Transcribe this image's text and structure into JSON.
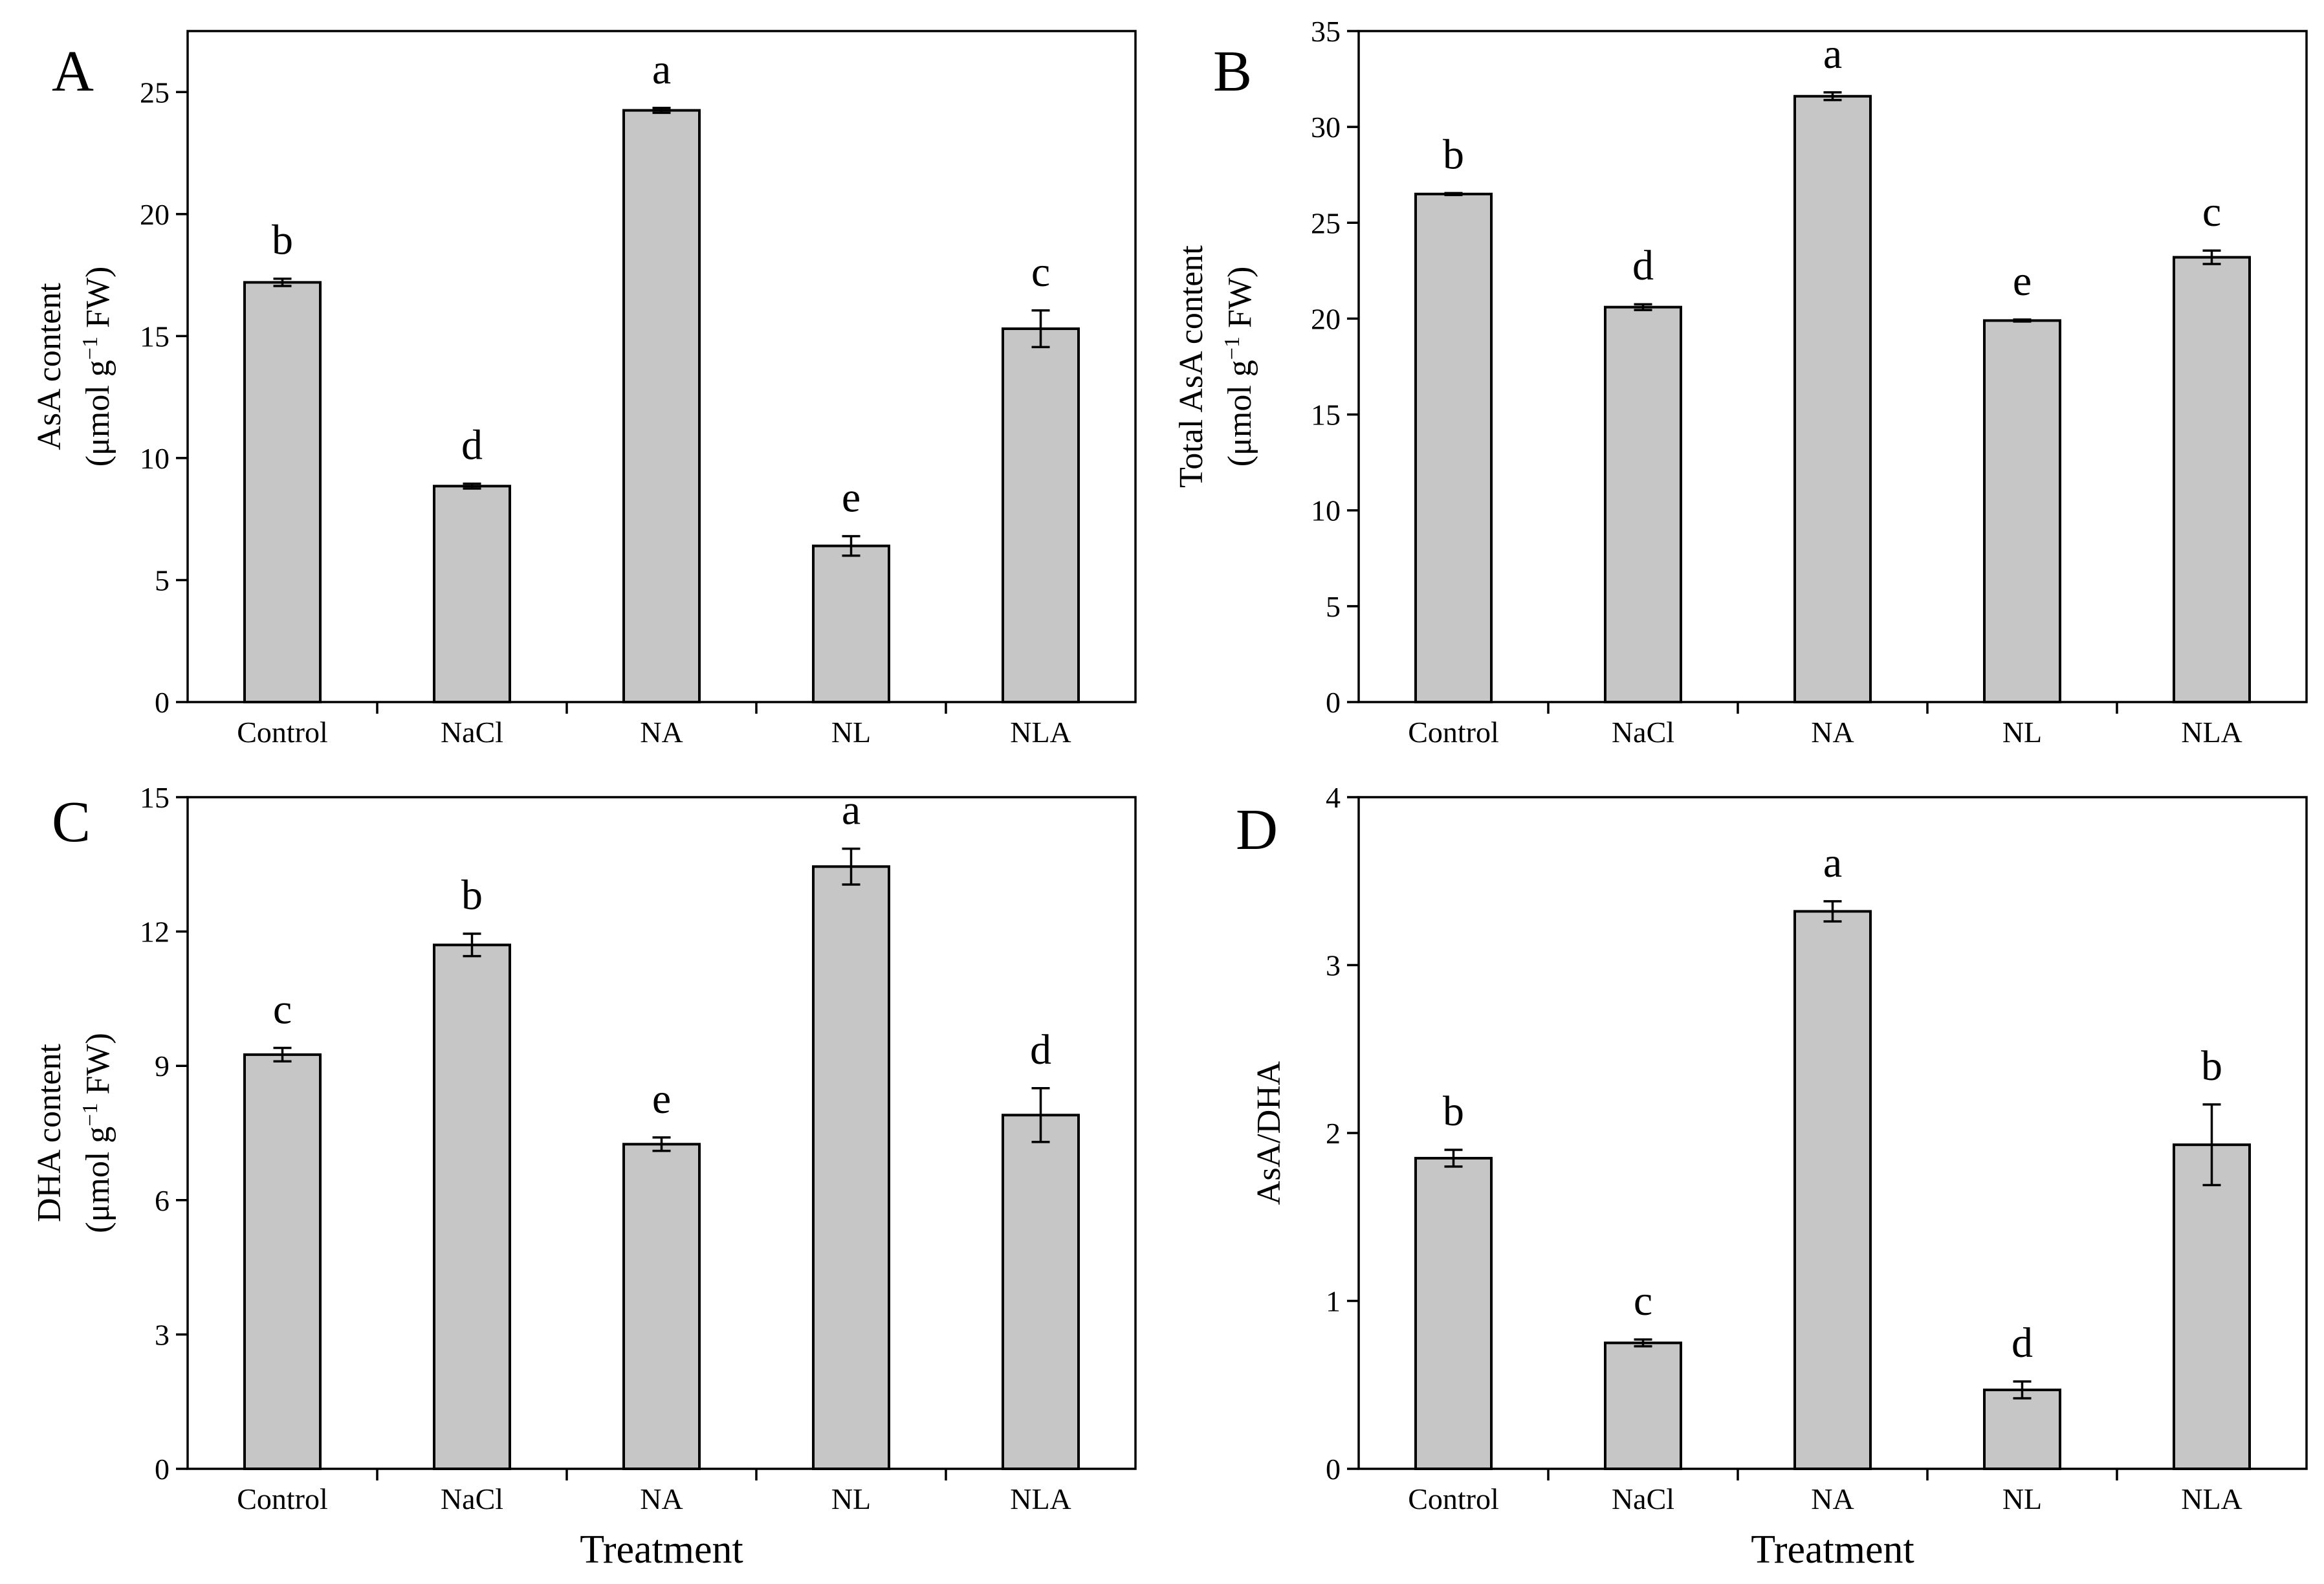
{
  "chart_data": [
    {
      "panel": "A",
      "type": "bar",
      "categories": [
        "Control",
        "NaCl",
        "NA",
        "NL",
        "NLA"
      ],
      "values": [
        17.2,
        8.85,
        24.25,
        6.4,
        15.3
      ],
      "errors": [
        0.15,
        0.1,
        0.1,
        0.4,
        0.75
      ],
      "letters": [
        "b",
        "d",
        "a",
        "e",
        "c"
      ],
      "ylabel_line1": "AsA content",
      "ylabel_line2": [
        "(μmol g",
        "−1",
        " FW)"
      ],
      "xlabel": "",
      "ylim": [
        0,
        27.5
      ],
      "yticks": [
        0,
        5,
        10,
        15,
        20,
        25
      ]
    },
    {
      "panel": "B",
      "type": "bar",
      "categories": [
        "Control",
        "NaCl",
        "NA",
        "NL",
        "NLA"
      ],
      "values": [
        26.5,
        20.6,
        31.6,
        19.9,
        23.2
      ],
      "errors": [
        0.05,
        0.15,
        0.2,
        0.05,
        0.35
      ],
      "letters": [
        "b",
        "d",
        "a",
        "e",
        "c"
      ],
      "ylabel_line1": "Total AsA content",
      "ylabel_line2": [
        "(μmol g",
        "−1",
        " FW)"
      ],
      "xlabel": "",
      "ylim": [
        0,
        35
      ],
      "yticks": [
        0,
        5,
        10,
        15,
        20,
        25,
        30,
        35
      ]
    },
    {
      "panel": "C",
      "type": "bar",
      "categories": [
        "Control",
        "NaCl",
        "NA",
        "NL",
        "NLA"
      ],
      "values": [
        9.25,
        11.7,
        7.25,
        13.45,
        7.9
      ],
      "errors": [
        0.15,
        0.25,
        0.15,
        0.4,
        0.6
      ],
      "letters": [
        "c",
        "b",
        "e",
        "a",
        "d"
      ],
      "ylabel_line1": "DHA content",
      "ylabel_line2": [
        "(μmol g",
        "−1",
        " FW)"
      ],
      "xlabel": "Treatment",
      "ylim": [
        0,
        15
      ],
      "yticks": [
        0,
        3,
        6,
        9,
        12,
        15
      ]
    },
    {
      "panel": "D",
      "type": "bar",
      "categories": [
        "Control",
        "NaCl",
        "NA",
        "NL",
        "NLA"
      ],
      "values": [
        1.85,
        0.75,
        3.32,
        0.47,
        1.93
      ],
      "errors": [
        0.05,
        0.02,
        0.06,
        0.05,
        0.24
      ],
      "letters": [
        "b",
        "c",
        "a",
        "d",
        "b"
      ],
      "ylabel_line1": "AsA/DHA",
      "ylabel_line2": null,
      "xlabel": "Treatment",
      "ylim": [
        0,
        4
      ],
      "yticks": [
        0,
        1,
        2,
        3,
        4
      ]
    }
  ],
  "colors": {
    "bar_fill": "#c6c6c6",
    "stroke": "#000000"
  }
}
